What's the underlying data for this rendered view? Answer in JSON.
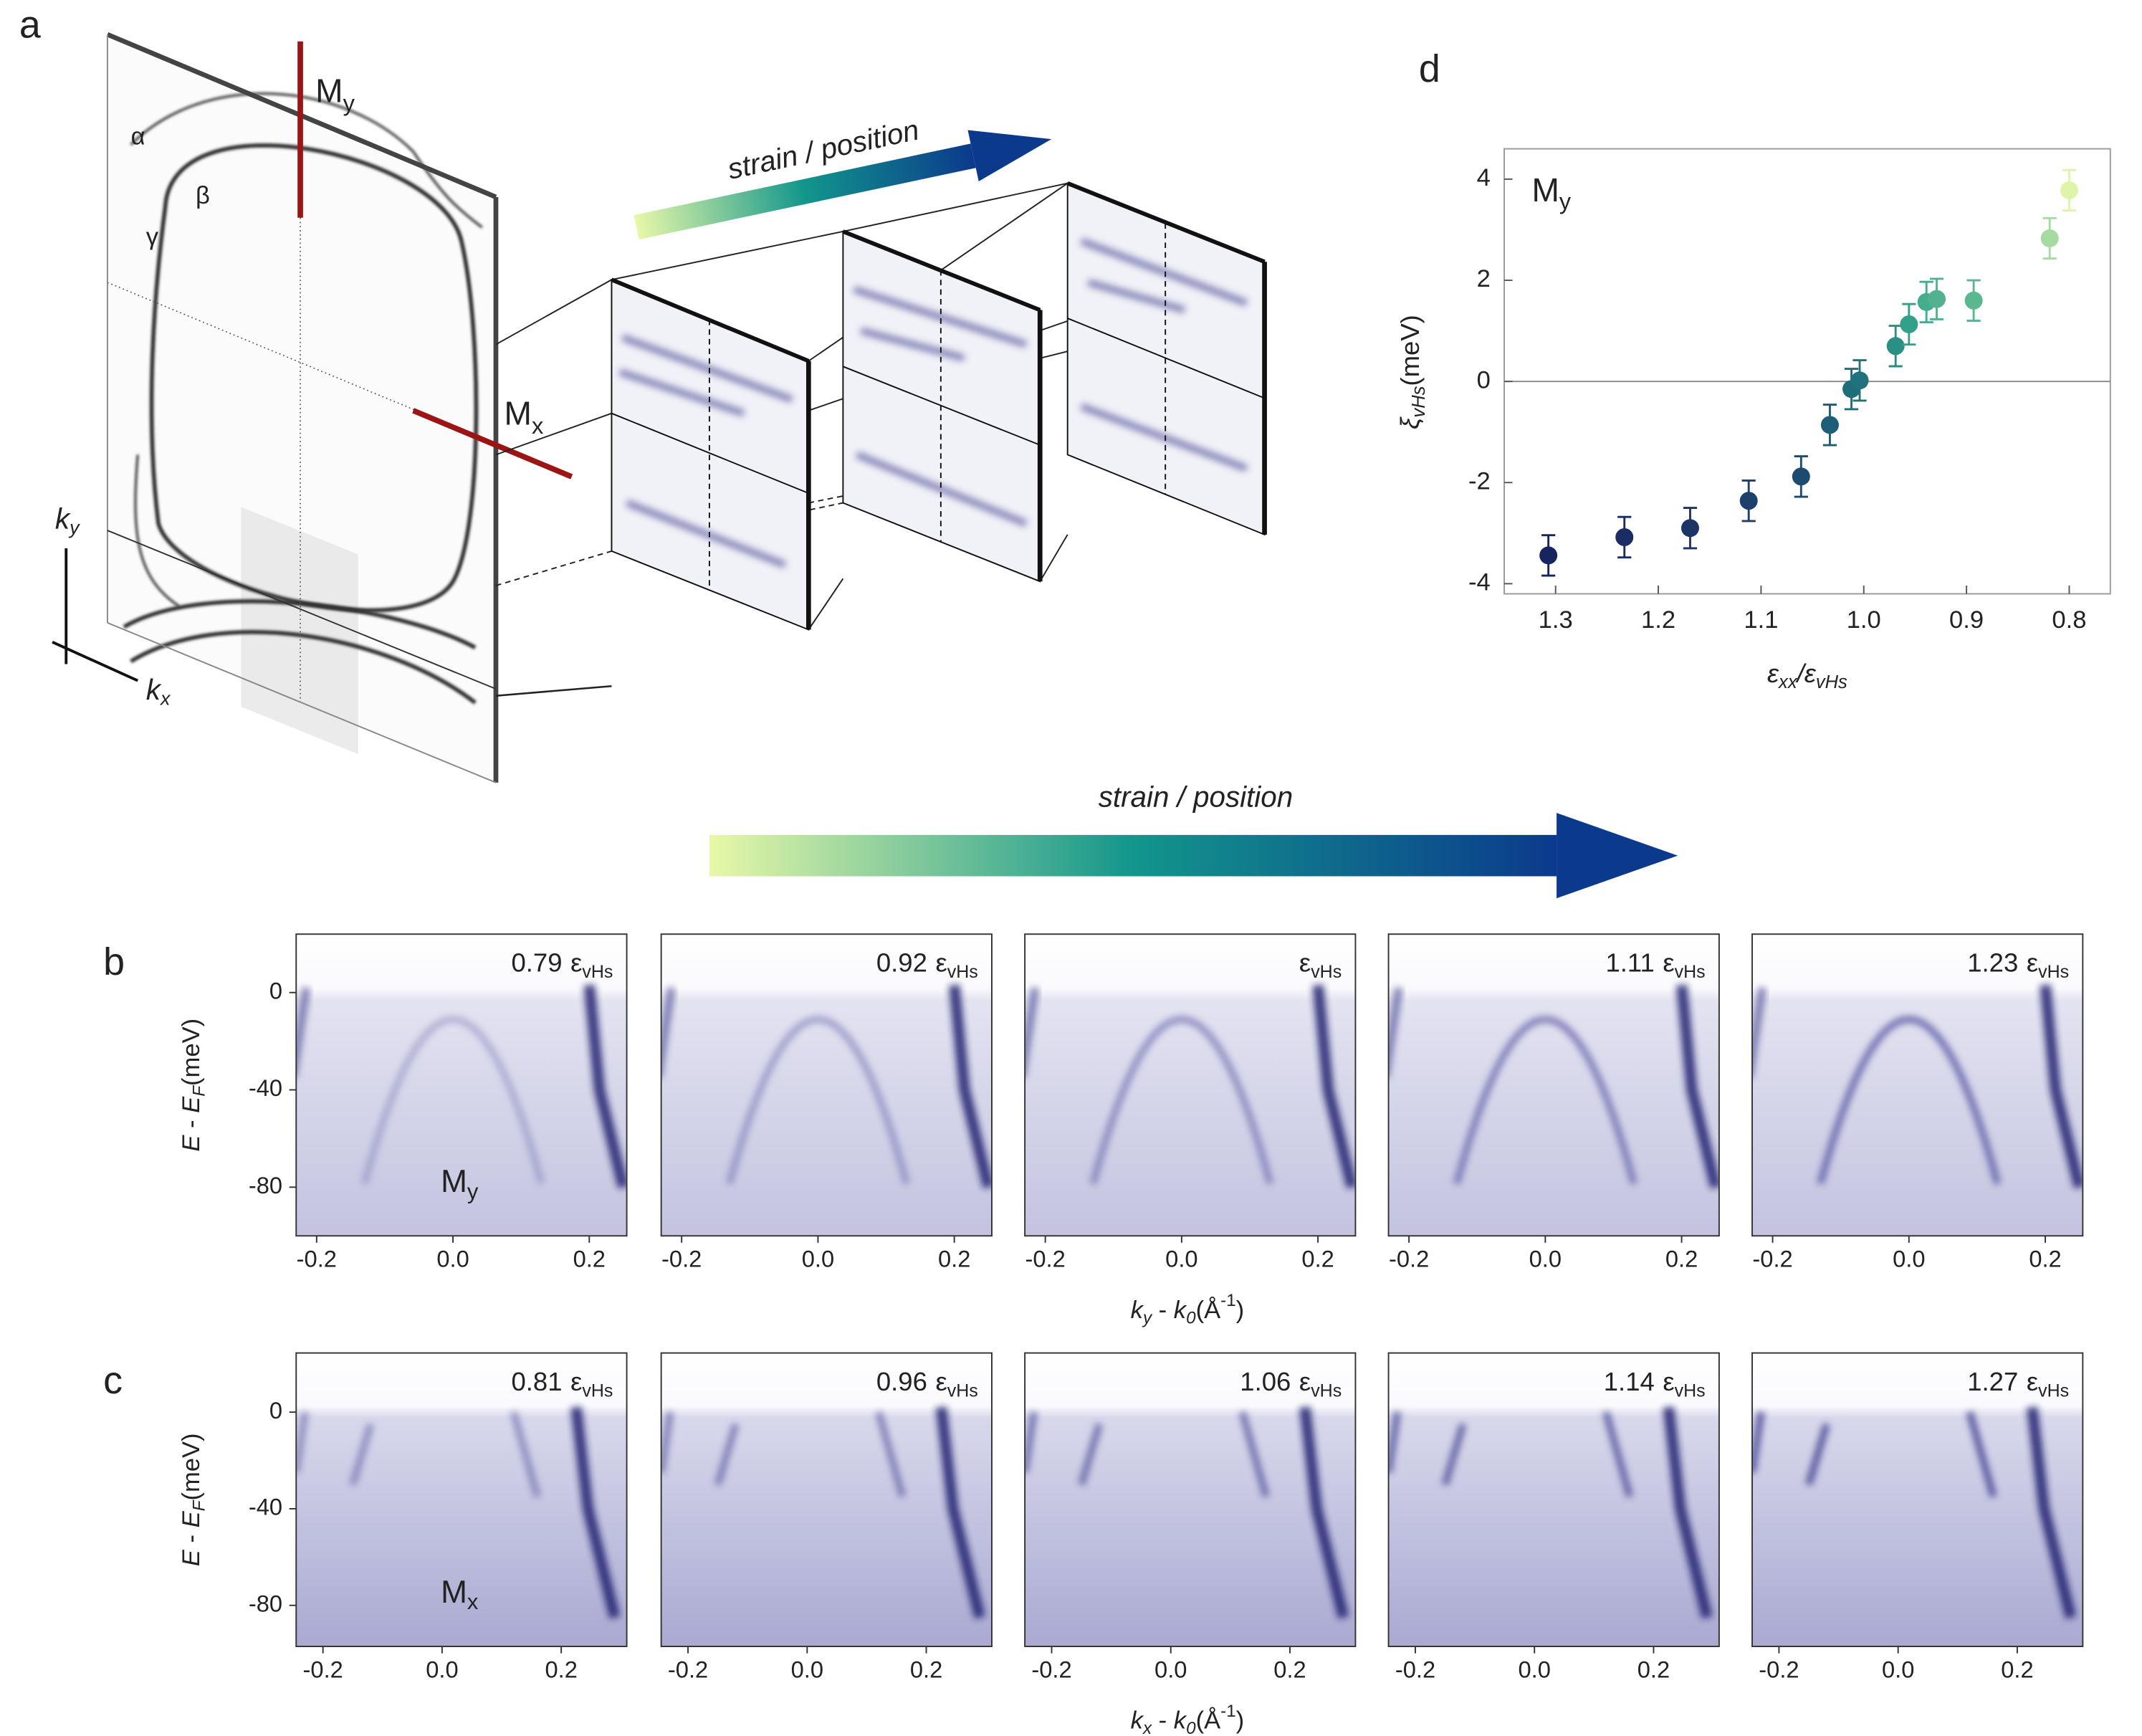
{
  "panel_a": {
    "label": "a",
    "bands": [
      "α",
      "β",
      "γ"
    ],
    "cuts": [
      {
        "text": "M",
        "sub": "y"
      },
      {
        "text": "M",
        "sub": "x"
      }
    ],
    "axes": [
      {
        "text": "k",
        "sub": "y"
      },
      {
        "text": "k",
        "sub": "x"
      }
    ],
    "arrow": "strain / position"
  },
  "strain_arrow": "strain / position",
  "chart_data": [
    {
      "type": "scatter",
      "label": "d",
      "annotation": {
        "text": "M",
        "sub": "y"
      },
      "xlabel": {
        "a": "ε",
        "asub": "xx",
        "sep": "/",
        "b": "ε",
        "bsub": "vHs"
      },
      "ylabel": {
        "symbol": "ξ",
        "sub": "vHs",
        "unit": "(meV)"
      },
      "xlim": [
        1.35,
        0.76
      ],
      "ylim": [
        -4.2,
        4.6
      ],
      "xticks": [
        1.3,
        1.2,
        1.1,
        {
          "value": 1,
          "label": "1.0"
        },
        0.9,
        0.8
      ],
      "yticks": [
        4,
        2,
        0,
        -2,
        -4
      ],
      "hline": 0,
      "x": [
        1.307,
        1.233,
        1.169,
        1.112,
        1.061,
        1.033,
        1.012,
        1.004,
        0.969,
        0.956,
        0.939,
        0.929,
        0.893,
        0.819,
        0.8
      ],
      "values": [
        -3.44,
        -3.08,
        -2.9,
        -2.36,
        -1.88,
        -0.86,
        -0.15,
        0.02,
        0.7,
        1.13,
        1.57,
        1.63,
        1.6,
        2.83,
        3.78
      ],
      "errors": [
        0.4,
        0.4,
        0.4,
        0.4,
        0.4,
        0.4,
        0.4,
        0.4,
        0.4,
        0.4,
        0.4,
        0.4,
        0.4,
        0.4,
        0.4
      ],
      "colors": [
        "#18245f",
        "#1a2d63",
        "#1b3566",
        "#1c3f6b",
        "#1d4b70",
        "#1f5e77",
        "#1f6d7b",
        "#20737d",
        "#2a8f84",
        "#35a089",
        "#45ac8d",
        "#52b28f",
        "#5bb790",
        "#a5dba0",
        "#dff3a9"
      ]
    },
    {
      "type": "image",
      "label": "b",
      "row_annotation": {
        "text": "M",
        "sub": "y"
      },
      "xlabel": {
        "a": "k",
        "asub": "y",
        "sep": " - ",
        "b": "k",
        "bsub": "0",
        "unit": "(Å",
        "sup": "-1",
        "close": ")"
      },
      "ylabel": {
        "a": "E",
        "sep": " - ",
        "b": "E",
        "bsub": "F",
        "unit": "(meV)"
      },
      "xlim": [
        -0.23,
        0.255
      ],
      "ylim": [
        -100,
        24
      ],
      "xticks": [
        -0.2,
        {
          "value": 0,
          "label": "0.0"
        },
        0.2
      ],
      "yticks": [
        0,
        -40,
        -80
      ],
      "panels": [
        {
          "strain": 0.79,
          "symbol": "ε",
          "sub": "vHs"
        },
        {
          "strain": 0.92,
          "symbol": "ε",
          "sub": "vHs"
        },
        {
          "symbol": "ε",
          "sub": "vHs"
        },
        {
          "strain": 1.11,
          "symbol": "ε",
          "sub": "vHs"
        },
        {
          "strain": 1.23,
          "symbol": "ε",
          "sub": "vHs"
        }
      ]
    },
    {
      "type": "image",
      "label": "c",
      "row_annotation": {
        "text": "M",
        "sub": "x"
      },
      "xlabel": {
        "a": "k",
        "asub": "x",
        "sep": " - ",
        "b": "k",
        "bsub": "0",
        "unit": "(Å",
        "sup": "-1",
        "close": ")"
      },
      "ylabel": {
        "a": "E",
        "sep": " - ",
        "b": "E",
        "bsub": "F",
        "unit": "(meV)"
      },
      "xlim": [
        -0.245,
        0.31
      ],
      "ylim": [
        -97,
        24.5
      ],
      "xticks": [
        -0.2,
        {
          "value": 0,
          "label": "0.0"
        },
        0.2
      ],
      "yticks": [
        0,
        -40,
        -80
      ],
      "panels": [
        {
          "strain": 0.81,
          "symbol": "ε",
          "sub": "vHs"
        },
        {
          "strain": 0.96,
          "symbol": "ε",
          "sub": "vHs"
        },
        {
          "strain": 1.06,
          "symbol": "ε",
          "sub": "vHs"
        },
        {
          "strain": 1.14,
          "symbol": "ε",
          "sub": "vHs"
        },
        {
          "strain": 1.27,
          "symbol": "ε",
          "sub": "vHs"
        }
      ]
    }
  ]
}
